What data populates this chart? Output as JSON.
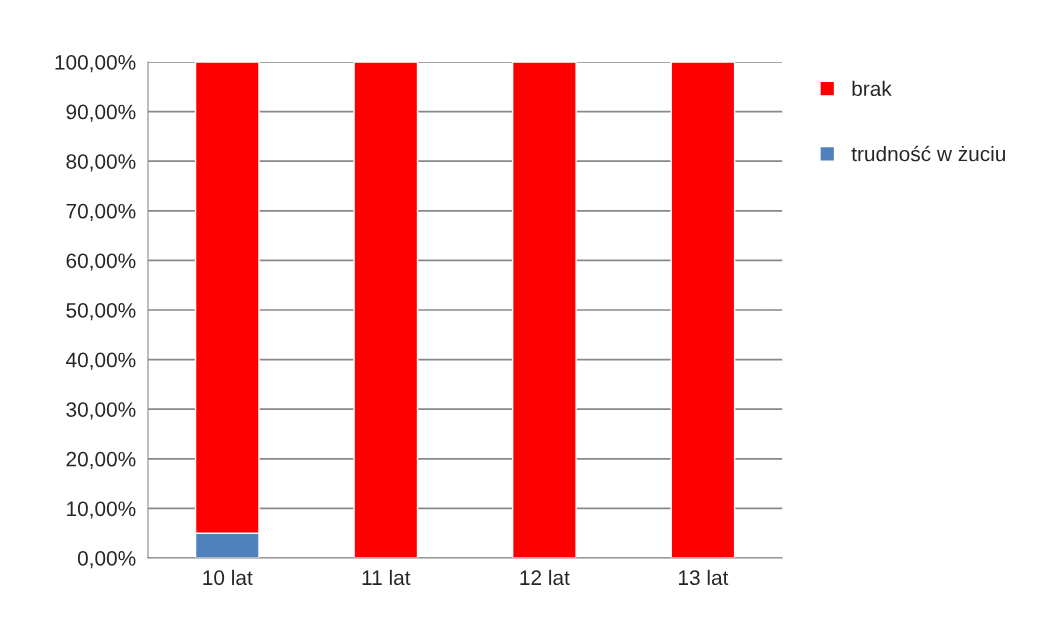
{
  "chart_data": {
    "type": "bar",
    "stacked": true,
    "categories": [
      "10 lat",
      "11 lat",
      "12 lat",
      "13 lat"
    ],
    "series": [
      {
        "name": "trudność w żuciu",
        "color": "#4f81bd",
        "values": [
          5,
          0,
          0,
          0
        ]
      },
      {
        "name": "brak",
        "color": "#ff0000",
        "values": [
          95,
          100,
          100,
          100
        ]
      }
    ],
    "ylim": [
      0,
      100
    ],
    "yticks": [
      {
        "value": 0,
        "label": "0,00%"
      },
      {
        "value": 10,
        "label": "10,00%"
      },
      {
        "value": 20,
        "label": "20,00%"
      },
      {
        "value": 30,
        "label": "30,00%"
      },
      {
        "value": 40,
        "label": "40,00%"
      },
      {
        "value": 50,
        "label": "50,00%"
      },
      {
        "value": 60,
        "label": "60,00%"
      },
      {
        "value": 70,
        "label": "70,00%"
      },
      {
        "value": 80,
        "label": "80,00%"
      },
      {
        "value": 90,
        "label": "90,00%"
      },
      {
        "value": 100,
        "label": "100,00%"
      }
    ],
    "grid": "y",
    "legend": "right"
  }
}
